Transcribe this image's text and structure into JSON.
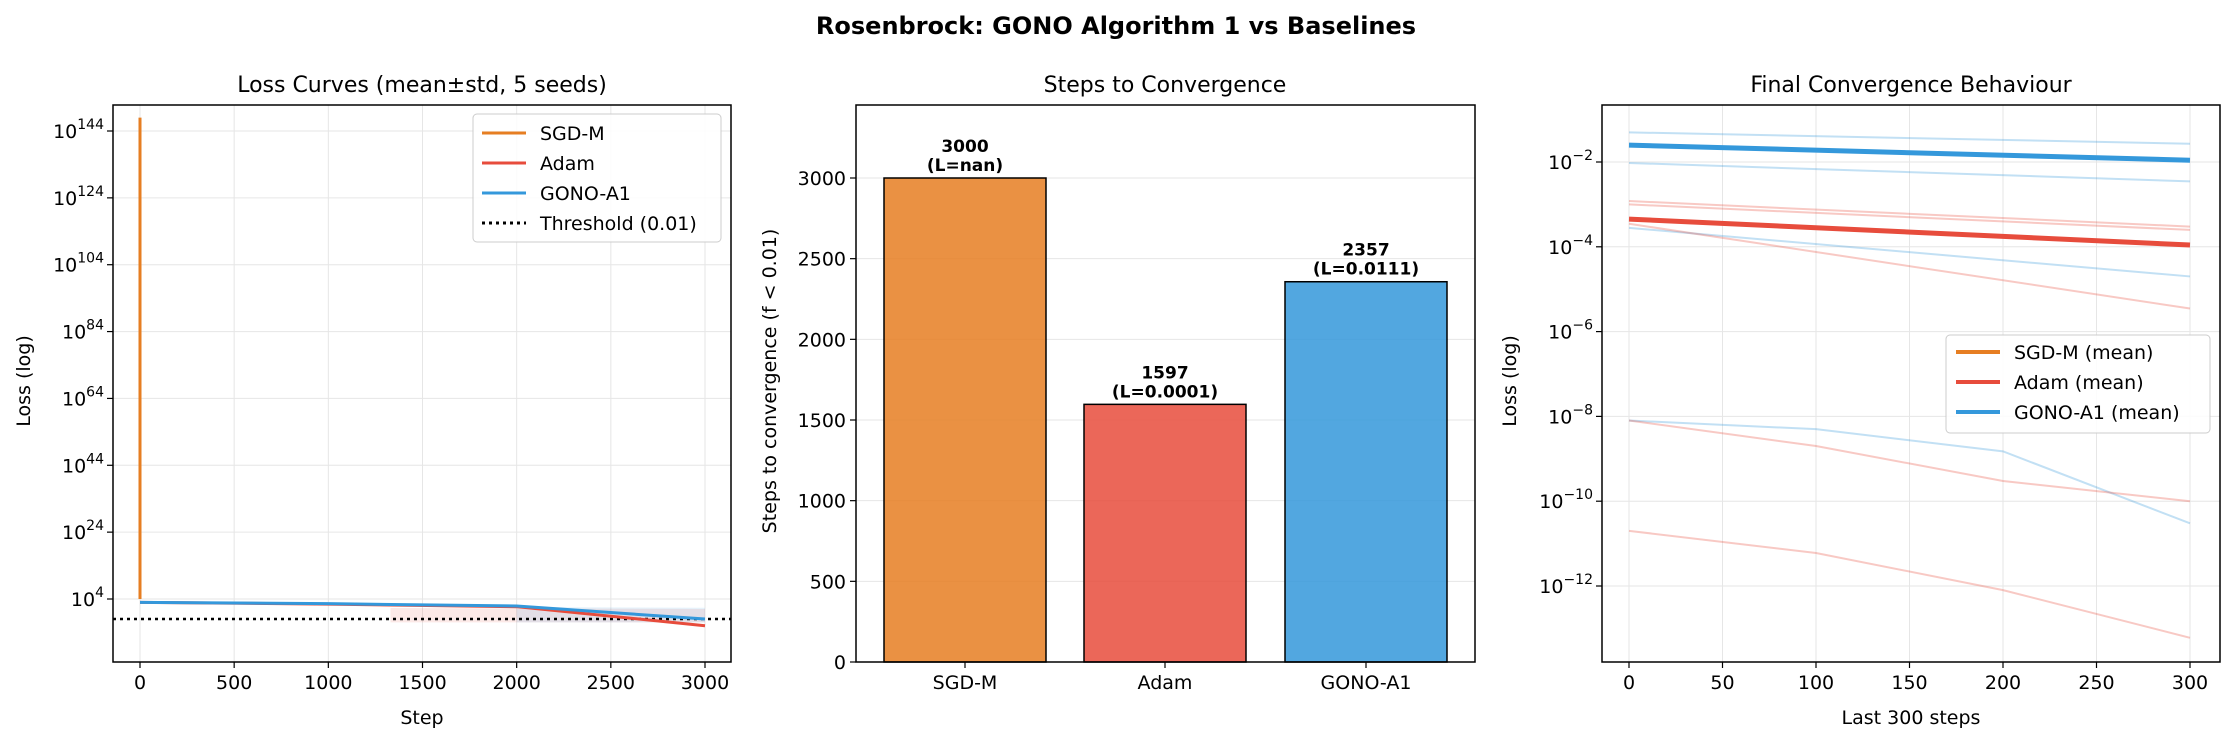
{
  "figure": {
    "suptitle": "Rosenbrock: GONO Algorithm 1 vs Baselines"
  },
  "colors": {
    "sgd": "#e67e22",
    "adam": "#e74c3c",
    "gono": "#3498db",
    "grid": "#e6e6e6",
    "threshold": "#000000"
  },
  "chart_data": [
    {
      "type": "line",
      "title": "Loss Curves (mean±std, 5 seeds)",
      "xlabel": "Step",
      "ylabel": "Loss (log)",
      "x_ticks": [
        0,
        500,
        1000,
        1500,
        2000,
        2500,
        3000
      ],
      "y_tick_exponents": [
        4,
        24,
        44,
        64,
        84,
        104,
        124,
        144
      ],
      "y_scale": "log",
      "grid": true,
      "legend_position": "upper right",
      "legend": [
        "SGD-M",
        "Adam",
        "GONO-A1",
        "Threshold (0.01)"
      ],
      "threshold": 0.01,
      "series": [
        {
          "name": "SGD-M",
          "points": [
            [
              0,
              10000.0
            ],
            [
              0,
              1e+148
            ]
          ]
        },
        {
          "name": "Adam",
          "points": [
            [
              0,
              1000.0
            ],
            [
              1000,
              300.0
            ],
            [
              2000,
              50.0
            ],
            [
              3000,
              0.0001
            ]
          ]
        },
        {
          "name": "GONO-A1",
          "points": [
            [
              0,
              1000.0
            ],
            [
              1000,
              400.0
            ],
            [
              2000,
              80.0
            ],
            [
              3000,
              0.01
            ]
          ]
        }
      ]
    },
    {
      "type": "bar",
      "title": "Steps to Convergence",
      "ylabel": "Steps to convergence (f < 0.01)",
      "categories": [
        "SGD-M",
        "Adam",
        "GONO-A1"
      ],
      "values": [
        3000,
        1597,
        2357
      ],
      "bar_labels": [
        [
          "3000",
          "(L=nan)"
        ],
        [
          "1597",
          "(L=0.0001)"
        ],
        [
          "2357",
          "(L=0.0111)"
        ]
      ],
      "y_ticks": [
        0,
        500,
        1000,
        1500,
        2000,
        2500,
        3000
      ],
      "ylim": [
        0,
        3450
      ],
      "grid": true
    },
    {
      "type": "line",
      "title": "Final Convergence Behaviour",
      "xlabel": "Last 300 steps",
      "ylabel": "Loss (log)",
      "x_ticks": [
        0,
        50,
        100,
        150,
        200,
        250,
        300
      ],
      "y_tick_exponents": [
        -12,
        -10,
        -8,
        -6,
        -4,
        -2
      ],
      "y_scale": "log",
      "grid": true,
      "legend_position": "center right",
      "legend": [
        "SGD-M (mean)",
        "Adam (mean)",
        "GONO-A1 (mean)"
      ],
      "series": [
        {
          "name": "GONO-A1 (mean)",
          "x": [
            0,
            300
          ],
          "y": [
            0.025,
            0.011
          ]
        },
        {
          "name": "Adam (mean)",
          "x": [
            0,
            300
          ],
          "y": [
            0.00045,
            0.00011
          ]
        }
      ],
      "seed_traces": [
        {
          "series": "GONO-A1",
          "x": [
            0,
            300
          ],
          "y": [
            0.05,
            0.027
          ]
        },
        {
          "series": "GONO-A1",
          "x": [
            0,
            300
          ],
          "y": [
            0.0095,
            0.0035
          ]
        },
        {
          "series": "GONO-A1",
          "x": [
            0,
            300
          ],
          "y": [
            0.00028,
            2e-05
          ]
        },
        {
          "series": "GONO-A1",
          "x": [
            0,
            100,
            200,
            300
          ],
          "y": [
            8e-09,
            5e-09,
            1.5e-09,
            3e-11
          ]
        },
        {
          "series": "Adam",
          "x": [
            0,
            300
          ],
          "y": [
            0.0012,
            0.0003
          ]
        },
        {
          "series": "Adam",
          "x": [
            0,
            300
          ],
          "y": [
            0.001,
            0.00025
          ]
        },
        {
          "series": "Adam",
          "x": [
            0,
            300
          ],
          "y": [
            0.00035,
            3.5e-06
          ]
        },
        {
          "series": "Adam",
          "x": [
            0,
            100,
            200,
            300
          ],
          "y": [
            8e-09,
            2e-09,
            3e-10,
            1e-10
          ]
        },
        {
          "series": "Adam",
          "x": [
            0,
            100,
            200,
            300
          ],
          "y": [
            2e-11,
            6e-12,
            8e-13,
            6e-14
          ]
        }
      ]
    }
  ]
}
